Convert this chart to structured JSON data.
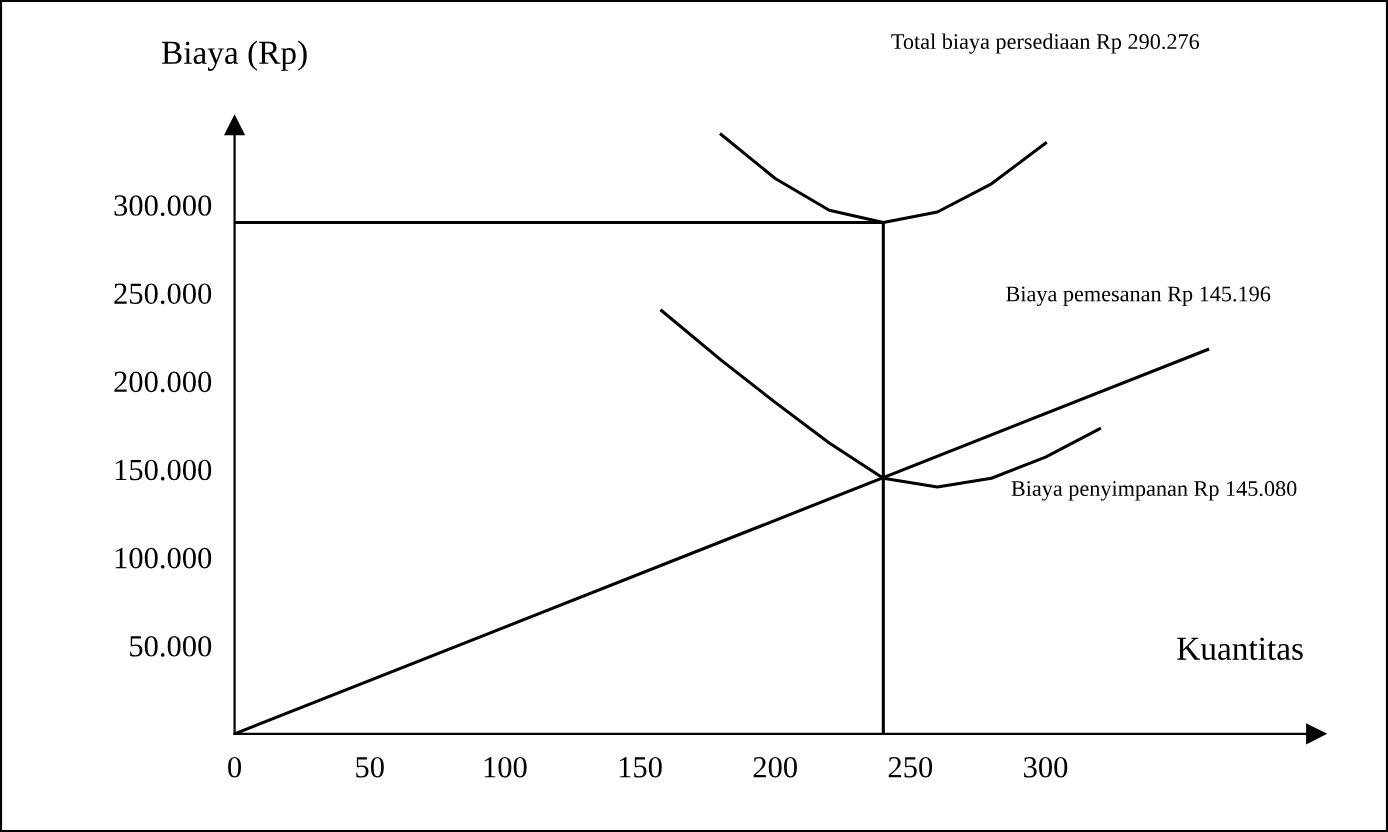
{
  "chart_data": {
    "type": "line",
    "ylabel": "Biaya (Rp)",
    "xlabel": "Kuantitas",
    "xlim": [
      0,
      400
    ],
    "ylim": [
      0,
      345000
    ],
    "xticks": [
      0,
      50,
      100,
      150,
      200,
      250,
      300
    ],
    "yticks": [
      {
        "value": 50000,
        "label": "50.000"
      },
      {
        "value": 100000,
        "label": "100.000"
      },
      {
        "value": 150000,
        "label": "150.000"
      },
      {
        "value": 200000,
        "label": "200.000"
      },
      {
        "value": 250000,
        "label": "250.000"
      },
      {
        "value": 300000,
        "label": "300.000"
      }
    ],
    "series": [
      {
        "color": "#000000",
        "x": [
          180,
          200,
          220,
          240,
          260,
          280,
          300
        ],
        "values": [
          340000,
          315000,
          297000,
          290000,
          296000,
          312000,
          335000
        ]
      },
      {
        "color": "#000000",
        "x": [
          158,
          180,
          200,
          220,
          240,
          260,
          280,
          300,
          320
        ],
        "values": [
          240000,
          212000,
          188000,
          165000,
          145000,
          140000,
          145000,
          157000,
          173000
        ]
      },
      {
        "color": "#000000",
        "x": [
          0,
          360
        ],
        "values": [
          0,
          218000
        ]
      },
      {
        "color": "#000000",
        "x": [
          0,
          240,
          240
        ],
        "values": [
          290000,
          290000,
          0
        ]
      }
    ],
    "annotations": [
      "Total biaya persediaan Rp 290.276",
      "Biaya pemesanan Rp 145.196",
      "Biaya penyimpanan Rp 145.080"
    ],
    "grid": false,
    "legend": false,
    "marker": "none",
    "line_style": "solid"
  }
}
